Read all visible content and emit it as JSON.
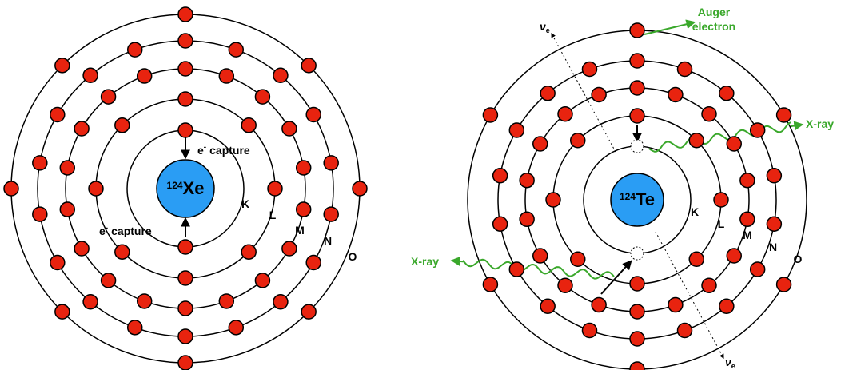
{
  "left_atom": {
    "nucleus": {
      "mass": "124",
      "symbol": "Xe"
    },
    "capture_labels": [
      {
        "base": "e",
        "sup": "-",
        "text": "capture"
      },
      {
        "base": "e",
        "sup": "-",
        "text": "capture"
      }
    ],
    "shells": [
      "K",
      "L",
      "M",
      "N",
      "O"
    ]
  },
  "right_atom": {
    "nucleus": {
      "mass": "124",
      "symbol": "Te"
    },
    "shells": [
      "K",
      "L",
      "M",
      "N",
      "O"
    ],
    "auger_label": [
      "Auger",
      "electron"
    ],
    "xray_labels": [
      "X-ray",
      "X-ray"
    ],
    "neutrino_labels": [
      {
        "symbol": "ν",
        "sub": "e"
      },
      {
        "symbol": "ν",
        "sub": "e"
      }
    ]
  }
}
